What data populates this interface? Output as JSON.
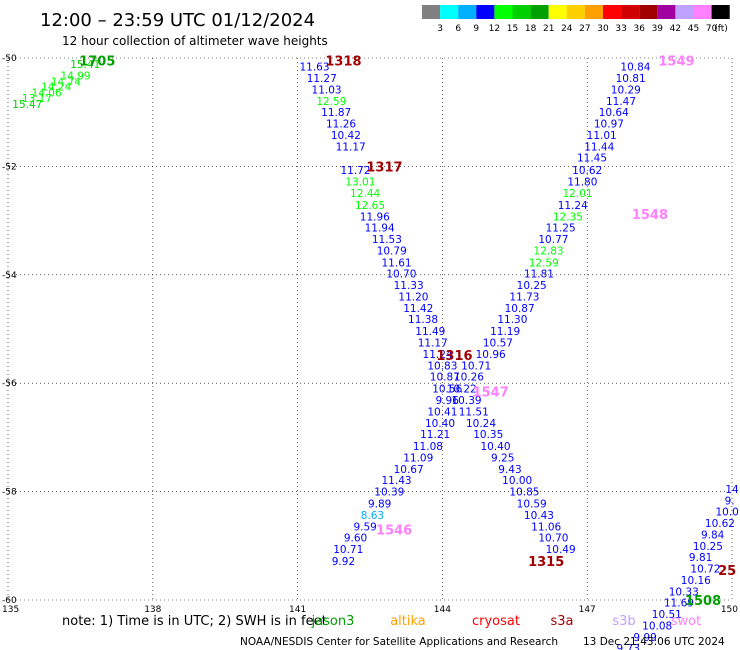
{
  "header": {
    "title": "12:00 – 23:59 UTC 01/12/2024",
    "subtitle": "12 hour collection of altimeter wave heights"
  },
  "colorbar": {
    "swatches": [
      "#808080",
      "#00ffff",
      "#00b0ff",
      "#0000ff",
      "#00ff00",
      "#00d000",
      "#00a000",
      "#ffff00",
      "#ffd000",
      "#ffa000",
      "#ff0000",
      "#d00000",
      "#a00000",
      "#a000a0",
      "#c0a0ff",
      "#ff80ff",
      "#000000"
    ],
    "labels": [
      "3",
      "6",
      "9",
      "12",
      "15",
      "18",
      "21",
      "24",
      "27",
      "30",
      "33",
      "36",
      "39",
      "42",
      "45",
      "70"
    ],
    "unit": "(ft)"
  },
  "footer": {
    "note": "note:  1) Time is in UTC; 2) SWH is in feet",
    "credit": "NOAA/NESDIS Center for Satellite Applications and Research",
    "timestamp": "13 Dec 21:43:06 UTC 2024",
    "satellites": [
      {
        "name": "jason3",
        "color": "#00a000"
      },
      {
        "name": "altika",
        "color": "#ffa000"
      },
      {
        "name": "cryosat",
        "color": "#ff0000"
      },
      {
        "name": "s3a",
        "color": "#a00000"
      },
      {
        "name": "s3b",
        "color": "#c0a0ff"
      },
      {
        "name": "swot",
        "color": "#ff80ff"
      }
    ]
  },
  "chart_data": {
    "type": "scatter",
    "title": "12:00 – 23:59 UTC 01/12/2024",
    "xlim": [
      135,
      150
    ],
    "ylim": [
      -60,
      -50
    ],
    "x_ticks": [
      "135",
      "138",
      "141",
      "144",
      "147",
      "150"
    ],
    "y_ticks": [
      "-50",
      "-52",
      "-54",
      "-56",
      "-58",
      "-60"
    ],
    "grid": true,
    "points": [
      {
        "x": 135.4,
        "y": -50.85,
        "v": "15.47",
        "c": "#00d000"
      },
      {
        "x": 135.6,
        "y": -50.74,
        "v": "13.17",
        "c": "#00ff00"
      },
      {
        "x": 135.8,
        "y": -50.64,
        "v": "14.06",
        "c": "#00ff00"
      },
      {
        "x": 136.0,
        "y": -50.53,
        "v": "14.24",
        "c": "#00ff00"
      },
      {
        "x": 136.2,
        "y": -50.43,
        "v": "14.74",
        "c": "#00ff00"
      },
      {
        "x": 136.4,
        "y": -50.32,
        "v": "14.99",
        "c": "#00ff00"
      },
      {
        "x": 136.6,
        "y": -50.11,
        "v": "15.41",
        "c": "#00d000"
      },
      {
        "x": 141.35,
        "y": -50.16,
        "v": "11.63",
        "c": "#0000ff"
      },
      {
        "x": 141.5,
        "y": -50.37,
        "v": "11.27",
        "c": "#0000ff"
      },
      {
        "x": 141.6,
        "y": -50.58,
        "v": "11.03",
        "c": "#0000ff"
      },
      {
        "x": 141.7,
        "y": -50.79,
        "v": "12.59",
        "c": "#00ff00"
      },
      {
        "x": 141.8,
        "y": -51.0,
        "v": "11.87",
        "c": "#0000ff"
      },
      {
        "x": 141.9,
        "y": -51.21,
        "v": "11.26",
        "c": "#0000ff"
      },
      {
        "x": 142.0,
        "y": -51.42,
        "v": "10.42",
        "c": "#0000ff"
      },
      {
        "x": 142.1,
        "y": -51.63,
        "v": "11.17",
        "c": "#0000ff"
      },
      {
        "x": 142.2,
        "y": -52.07,
        "v": "11.72",
        "c": "#0000ff"
      },
      {
        "x": 142.3,
        "y": -52.28,
        "v": "13.01",
        "c": "#00ff00"
      },
      {
        "x": 142.4,
        "y": -52.49,
        "v": "12.44",
        "c": "#00ff00"
      },
      {
        "x": 142.5,
        "y": -52.71,
        "v": "12.65",
        "c": "#00ff00"
      },
      {
        "x": 142.6,
        "y": -52.92,
        "v": "11.96",
        "c": "#0000ff"
      },
      {
        "x": 142.7,
        "y": -53.13,
        "v": "11.94",
        "c": "#0000ff"
      },
      {
        "x": 142.85,
        "y": -53.34,
        "v": "11.53",
        "c": "#0000ff"
      },
      {
        "x": 142.95,
        "y": -53.55,
        "v": "10.79",
        "c": "#0000ff"
      },
      {
        "x": 143.05,
        "y": -53.77,
        "v": "11.61",
        "c": "#0000ff"
      },
      {
        "x": 143.15,
        "y": -53.98,
        "v": "10.70",
        "c": "#0000ff"
      },
      {
        "x": 143.3,
        "y": -54.19,
        "v": "11.33",
        "c": "#0000ff"
      },
      {
        "x": 143.4,
        "y": -54.4,
        "v": "11.20",
        "c": "#0000ff"
      },
      {
        "x": 143.5,
        "y": -54.61,
        "v": "11.42",
        "c": "#0000ff"
      },
      {
        "x": 143.6,
        "y": -54.82,
        "v": "11.38",
        "c": "#0000ff"
      },
      {
        "x": 143.75,
        "y": -55.04,
        "v": "11.49",
        "c": "#0000ff"
      },
      {
        "x": 143.8,
        "y": -55.25,
        "v": "11.17",
        "c": "#0000ff"
      },
      {
        "x": 143.9,
        "y": -55.46,
        "v": "11.24",
        "c": "#0000ff"
      },
      {
        "x": 144.0,
        "y": -55.67,
        "v": "10.83",
        "c": "#0000ff"
      },
      {
        "x": 144.05,
        "y": -55.88,
        "v": "10.87",
        "c": "#0000ff"
      },
      {
        "x": 144.1,
        "y": -56.1,
        "v": "10.56",
        "c": "#0000ff"
      },
      {
        "x": 144.1,
        "y": -56.31,
        "v": "9.96",
        "c": "#0000ff"
      },
      {
        "x": 144.0,
        "y": -56.52,
        "v": "10.41",
        "c": "#0000ff"
      },
      {
        "x": 143.95,
        "y": -56.73,
        "v": "10.40",
        "c": "#0000ff"
      },
      {
        "x": 143.85,
        "y": -56.94,
        "v": "11.21",
        "c": "#0000ff"
      },
      {
        "x": 143.7,
        "y": -57.16,
        "v": "11.08",
        "c": "#0000ff"
      },
      {
        "x": 143.5,
        "y": -57.37,
        "v": "11.09",
        "c": "#0000ff"
      },
      {
        "x": 143.3,
        "y": -57.58,
        "v": "10.67",
        "c": "#0000ff"
      },
      {
        "x": 143.05,
        "y": -57.79,
        "v": "11.43",
        "c": "#0000ff"
      },
      {
        "x": 142.9,
        "y": -58.0,
        "v": "10.39",
        "c": "#0000ff"
      },
      {
        "x": 142.7,
        "y": -58.22,
        "v": "9.89",
        "c": "#0000ff"
      },
      {
        "x": 142.55,
        "y": -58.43,
        "v": "8.63",
        "c": "#00b0ff"
      },
      {
        "x": 142.4,
        "y": -58.64,
        "v": "9.59",
        "c": "#0000ff"
      },
      {
        "x": 142.2,
        "y": -58.85,
        "v": "9.60",
        "c": "#0000ff"
      },
      {
        "x": 142.05,
        "y": -59.06,
        "v": "10.71",
        "c": "#0000ff"
      },
      {
        "x": 141.95,
        "y": -59.28,
        "v": "9.92",
        "c": "#0000ff"
      },
      {
        "x": 148.0,
        "y": -50.16,
        "v": "10.84",
        "c": "#0000ff"
      },
      {
        "x": 147.9,
        "y": -50.37,
        "v": "10.81",
        "c": "#0000ff"
      },
      {
        "x": 147.8,
        "y": -50.58,
        "v": "10.29",
        "c": "#0000ff"
      },
      {
        "x": 147.7,
        "y": -50.79,
        "v": "11.47",
        "c": "#0000ff"
      },
      {
        "x": 147.55,
        "y": -51.0,
        "v": "10.64",
        "c": "#0000ff"
      },
      {
        "x": 147.45,
        "y": -51.21,
        "v": "10.97",
        "c": "#0000ff"
      },
      {
        "x": 147.3,
        "y": -51.42,
        "v": "11.01",
        "c": "#0000ff"
      },
      {
        "x": 147.25,
        "y": -51.63,
        "v": "11.44",
        "c": "#0000ff"
      },
      {
        "x": 147.1,
        "y": -51.84,
        "v": "11.45",
        "c": "#0000ff"
      },
      {
        "x": 147.0,
        "y": -52.07,
        "v": "10.62",
        "c": "#0000ff"
      },
      {
        "x": 146.9,
        "y": -52.28,
        "v": "11.80",
        "c": "#0000ff"
      },
      {
        "x": 146.8,
        "y": -52.49,
        "v": "12.01",
        "c": "#00ff00"
      },
      {
        "x": 146.7,
        "y": -52.71,
        "v": "11.24",
        "c": "#0000ff"
      },
      {
        "x": 146.6,
        "y": -52.92,
        "v": "12.35",
        "c": "#00ff00"
      },
      {
        "x": 146.45,
        "y": -53.13,
        "v": "11.25",
        "c": "#0000ff"
      },
      {
        "x": 146.3,
        "y": -53.34,
        "v": "10.77",
        "c": "#0000ff"
      },
      {
        "x": 146.2,
        "y": -53.55,
        "v": "12.83",
        "c": "#00ff00"
      },
      {
        "x": 146.1,
        "y": -53.77,
        "v": "12.59",
        "c": "#00ff00"
      },
      {
        "x": 146.0,
        "y": -53.98,
        "v": "11.81",
        "c": "#0000ff"
      },
      {
        "x": 145.85,
        "y": -54.19,
        "v": "10.25",
        "c": "#0000ff"
      },
      {
        "x": 145.7,
        "y": -54.4,
        "v": "11.73",
        "c": "#0000ff"
      },
      {
        "x": 145.6,
        "y": -54.61,
        "v": "10.87",
        "c": "#0000ff"
      },
      {
        "x": 145.45,
        "y": -54.82,
        "v": "11.30",
        "c": "#0000ff"
      },
      {
        "x": 145.3,
        "y": -55.04,
        "v": "11.19",
        "c": "#0000ff"
      },
      {
        "x": 145.15,
        "y": -55.25,
        "v": "10.57",
        "c": "#0000ff"
      },
      {
        "x": 145.0,
        "y": -55.46,
        "v": "10.96",
        "c": "#0000ff"
      },
      {
        "x": 144.7,
        "y": -55.67,
        "v": "10.71",
        "c": "#0000ff"
      },
      {
        "x": 144.55,
        "y": -55.88,
        "v": "10.26",
        "c": "#0000ff"
      },
      {
        "x": 144.4,
        "y": -56.1,
        "v": "10.22",
        "c": "#0000ff"
      },
      {
        "x": 144.5,
        "y": -56.31,
        "v": "10.39",
        "c": "#0000ff"
      },
      {
        "x": 144.65,
        "y": -56.52,
        "v": "11.51",
        "c": "#0000ff"
      },
      {
        "x": 144.8,
        "y": -56.73,
        "v": "10.24",
        "c": "#0000ff"
      },
      {
        "x": 144.95,
        "y": -56.94,
        "v": "10.35",
        "c": "#0000ff"
      },
      {
        "x": 145.1,
        "y": -57.16,
        "v": "10.40",
        "c": "#0000ff"
      },
      {
        "x": 145.25,
        "y": -57.37,
        "v": "9.25",
        "c": "#0000ff"
      },
      {
        "x": 145.4,
        "y": -57.58,
        "v": "9.43",
        "c": "#0000ff"
      },
      {
        "x": 145.55,
        "y": -57.79,
        "v": "10.00",
        "c": "#0000ff"
      },
      {
        "x": 145.7,
        "y": -58.0,
        "v": "10.85",
        "c": "#0000ff"
      },
      {
        "x": 145.85,
        "y": -58.22,
        "v": "10.59",
        "c": "#0000ff"
      },
      {
        "x": 146.0,
        "y": -58.43,
        "v": "10.43",
        "c": "#0000ff"
      },
      {
        "x": 146.15,
        "y": -58.64,
        "v": "11.06",
        "c": "#0000ff"
      },
      {
        "x": 146.3,
        "y": -58.85,
        "v": "10.70",
        "c": "#0000ff"
      },
      {
        "x": 146.45,
        "y": -59.06,
        "v": "10.49",
        "c": "#0000ff"
      },
      {
        "x": 150.0,
        "y": -57.95,
        "v": "14",
        "c": "#0000ff"
      },
      {
        "x": 149.95,
        "y": -58.16,
        "v": "9.",
        "c": "#0000ff"
      },
      {
        "x": 149.9,
        "y": -58.37,
        "v": "10.0",
        "c": "#0000ff"
      },
      {
        "x": 149.75,
        "y": -58.58,
        "v": "10.62",
        "c": "#0000ff"
      },
      {
        "x": 149.6,
        "y": -58.79,
        "v": "9.84",
        "c": "#0000ff"
      },
      {
        "x": 149.5,
        "y": -59.0,
        "v": "10.25",
        "c": "#0000ff"
      },
      {
        "x": 149.35,
        "y": -59.21,
        "v": "9.81",
        "c": "#0000ff"
      },
      {
        "x": 149.45,
        "y": -59.42,
        "v": "10.72",
        "c": "#0000ff"
      },
      {
        "x": 149.25,
        "y": -59.63,
        "v": "10.16",
        "c": "#0000ff"
      },
      {
        "x": 149.0,
        "y": -59.84,
        "v": "10.33",
        "c": "#0000ff"
      },
      {
        "x": 148.9,
        "y": -60.05,
        "v": "11.69",
        "c": "#0000ff"
      },
      {
        "x": 148.65,
        "y": -60.26,
        "v": "10.51",
        "c": "#0000ff"
      },
      {
        "x": 148.45,
        "y": -60.47,
        "v": "10.08",
        "c": "#0000ff"
      },
      {
        "x": 148.2,
        "y": -60.68,
        "v": "9.99",
        "c": "#0000ff"
      },
      {
        "x": 147.85,
        "y": -60.89,
        "v": "9.73",
        "c": "#0000ff"
      }
    ],
    "pass_labels": [
      {
        "x": 136.85,
        "y": -50.05,
        "v": "1705",
        "c": "#00a000"
      },
      {
        "x": 141.95,
        "y": -50.05,
        "v": "1318",
        "c": "#a00000"
      },
      {
        "x": 142.8,
        "y": -52.0,
        "v": "1317",
        "c": "#a00000"
      },
      {
        "x": 144.25,
        "y": -55.48,
        "v": "1316",
        "c": "#a00000"
      },
      {
        "x": 146.15,
        "y": -59.28,
        "v": "1315",
        "c": "#a00000"
      },
      {
        "x": 148.85,
        "y": -50.05,
        "v": "1549",
        "c": "#ff80ff"
      },
      {
        "x": 148.3,
        "y": -52.88,
        "v": "1548",
        "c": "#ff80ff"
      },
      {
        "x": 145.0,
        "y": -56.15,
        "v": "1547",
        "c": "#ff80ff"
      },
      {
        "x": 143.0,
        "y": -58.7,
        "v": "1546",
        "c": "#ff80ff"
      },
      {
        "x": 149.4,
        "y": -60.0,
        "v": "1508",
        "c": "#00a000"
      },
      {
        "x": 149.9,
        "y": -59.45,
        "v": "25",
        "c": "#a00000"
      }
    ]
  }
}
